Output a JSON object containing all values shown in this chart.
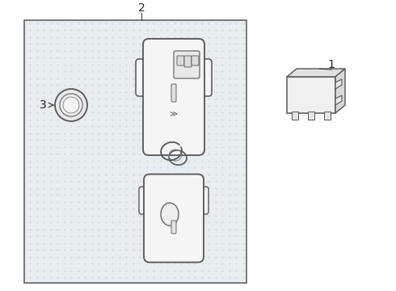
{
  "fig_bg": "#ffffff",
  "label1": "1",
  "label2": "2",
  "label3": "3",
  "box_bg": "#e8edf0",
  "box_edge": "#555555",
  "fob_fill": "#f5f5f5",
  "fob_edge": "#555555",
  "ring_fill": "#f0f0f0",
  "module_fill": "#f5f5f5",
  "module_edge": "#666666"
}
